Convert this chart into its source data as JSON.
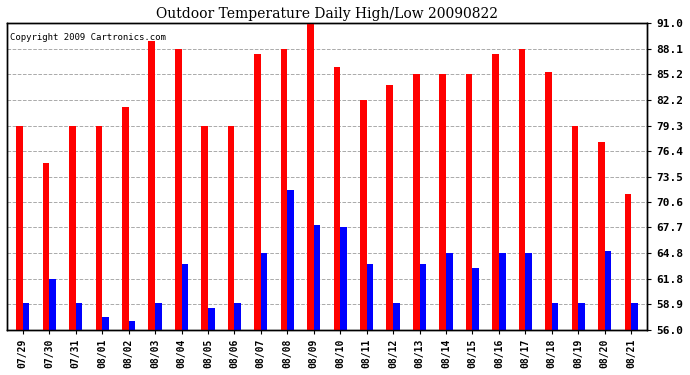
{
  "title": "Outdoor Temperature Daily High/Low 20090822",
  "copyright": "Copyright 2009 Cartronics.com",
  "dates": [
    "07/29",
    "07/30",
    "07/31",
    "08/01",
    "08/02",
    "08/03",
    "08/04",
    "08/05",
    "08/06",
    "08/07",
    "08/08",
    "08/09",
    "08/10",
    "08/11",
    "08/12",
    "08/13",
    "08/14",
    "08/15",
    "08/16",
    "08/17",
    "08/18",
    "08/19",
    "08/20",
    "08/21"
  ],
  "highs": [
    79.3,
    75.0,
    79.3,
    79.3,
    81.5,
    89.0,
    88.1,
    79.3,
    79.3,
    87.5,
    88.1,
    91.0,
    86.0,
    82.2,
    84.0,
    85.2,
    85.2,
    85.2,
    87.5,
    88.1,
    85.5,
    79.3,
    77.5,
    71.5
  ],
  "lows": [
    59.0,
    61.8,
    59.0,
    57.5,
    57.0,
    59.0,
    63.5,
    58.5,
    59.0,
    64.8,
    72.0,
    68.0,
    67.7,
    63.5,
    59.0,
    63.5,
    64.8,
    63.0,
    64.8,
    64.8,
    59.0,
    59.0,
    65.0,
    59.0
  ],
  "high_color": "#ff0000",
  "low_color": "#0000ff",
  "background_color": "#ffffff",
  "grid_color": "#aaaaaa",
  "yticks": [
    56.0,
    58.9,
    61.8,
    64.8,
    67.7,
    70.6,
    73.5,
    76.4,
    79.3,
    82.2,
    85.2,
    88.1,
    91.0
  ],
  "ymin": 56.0,
  "ymax": 91.0,
  "bar_width": 0.25,
  "figwidth": 6.9,
  "figheight": 3.75,
  "dpi": 100
}
